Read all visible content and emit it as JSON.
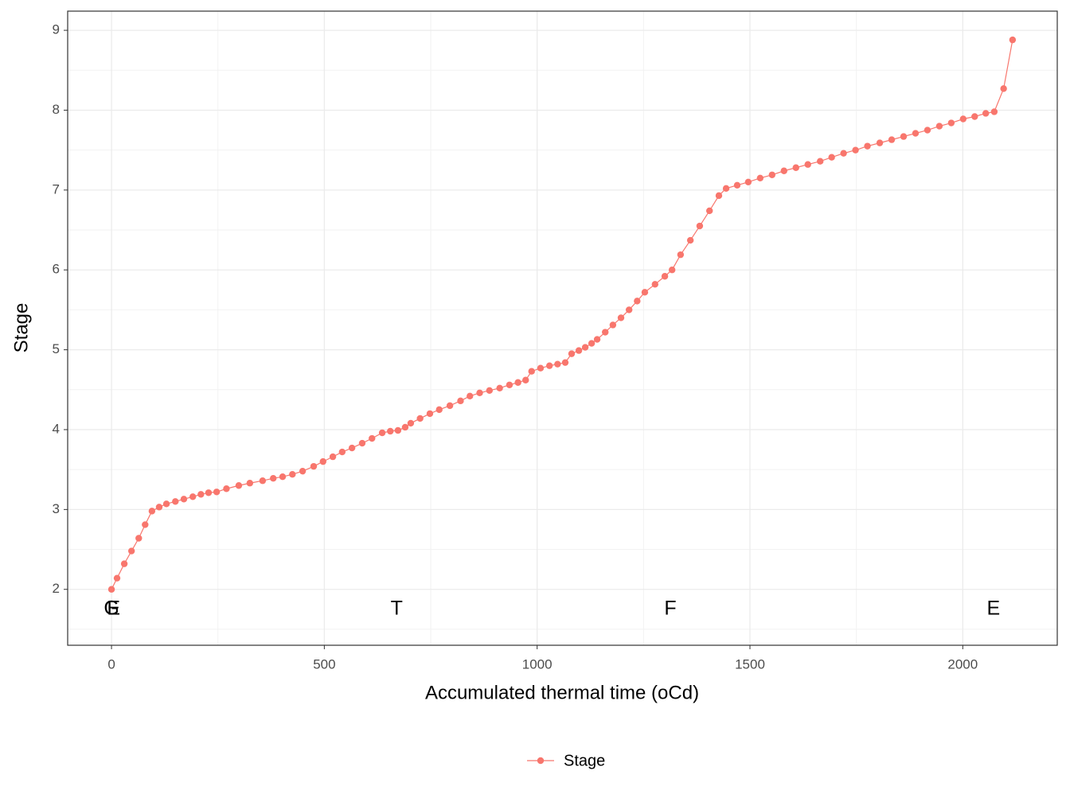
{
  "chart_data": {
    "type": "line",
    "x_label": "Accumulated thermal time (oCd)",
    "y_label": "Stage",
    "xlim": [
      -103,
      2222
    ],
    "ylim": [
      1.3,
      9.24
    ],
    "xticks": [
      0,
      500,
      1000,
      1500,
      2000
    ],
    "yticks": [
      2,
      3,
      4,
      5,
      6,
      7,
      8,
      9
    ],
    "grid": true,
    "legend_position": "bottom",
    "series": [
      {
        "name": "Stage",
        "color": "#F8766D",
        "x": [
          0,
          13,
          30,
          47,
          64,
          79,
          95,
          112,
          129,
          150,
          170,
          191,
          210,
          228,
          247,
          270,
          299,
          325,
          355,
          380,
          402,
          425,
          449,
          475,
          497,
          520,
          542,
          565,
          589,
          612,
          636,
          655,
          673,
          690,
          703,
          725,
          748,
          770,
          795,
          820,
          842,
          865,
          888,
          912,
          935,
          955,
          973,
          987,
          1008,
          1029,
          1048,
          1066,
          1081,
          1098,
          1113,
          1128,
          1141,
          1160,
          1178,
          1197,
          1216,
          1235,
          1253,
          1277,
          1300,
          1317,
          1337,
          1360,
          1382,
          1405,
          1427,
          1444,
          1470,
          1496,
          1524,
          1552,
          1580,
          1608,
          1636,
          1665,
          1692,
          1720,
          1748,
          1776,
          1805,
          1833,
          1861,
          1889,
          1917,
          1945,
          1973,
          2001,
          2028,
          2054,
          2074,
          2096,
          2117
        ],
        "values": [
          2.0,
          2.14,
          2.32,
          2.48,
          2.64,
          2.81,
          2.98,
          3.03,
          3.07,
          3.1,
          3.13,
          3.16,
          3.19,
          3.21,
          3.22,
          3.26,
          3.3,
          3.33,
          3.36,
          3.39,
          3.41,
          3.44,
          3.48,
          3.54,
          3.6,
          3.66,
          3.72,
          3.77,
          3.83,
          3.89,
          3.96,
          3.98,
          3.99,
          4.03,
          4.08,
          4.14,
          4.2,
          4.25,
          4.3,
          4.36,
          4.42,
          4.46,
          4.49,
          4.52,
          4.56,
          4.59,
          4.62,
          4.73,
          4.77,
          4.8,
          4.82,
          4.84,
          4.95,
          4.99,
          5.03,
          5.08,
          5.13,
          5.22,
          5.31,
          5.4,
          5.5,
          5.61,
          5.72,
          5.82,
          5.92,
          6.0,
          6.19,
          6.37,
          6.55,
          6.74,
          6.93,
          7.02,
          7.06,
          7.1,
          7.15,
          7.19,
          7.24,
          7.28,
          7.32,
          7.36,
          7.41,
          7.46,
          7.5,
          7.55,
          7.59,
          7.63,
          7.67,
          7.71,
          7.75,
          7.8,
          7.84,
          7.89,
          7.92,
          7.96,
          7.98,
          8.27,
          8.88
        ]
      }
    ],
    "annotations": [
      {
        "text": "G",
        "x": 0,
        "y": 1.75
      },
      {
        "text": "E",
        "x": 5,
        "y": 1.75
      },
      {
        "text": "T",
        "x": 670,
        "y": 1.75
      },
      {
        "text": "F",
        "x": 1313,
        "y": 1.75
      },
      {
        "text": "E",
        "x": 2072,
        "y": 1.75
      }
    ]
  }
}
